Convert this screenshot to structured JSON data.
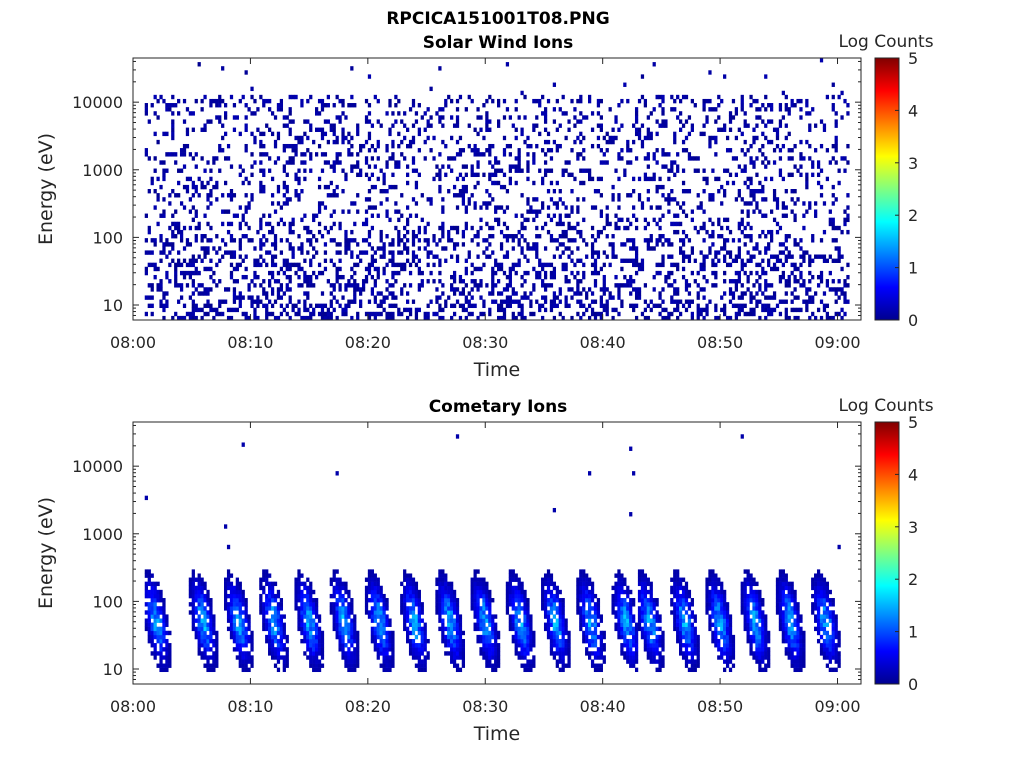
{
  "figure_title": "RPCICA151001T08.PNG",
  "colormap": [
    "#00008f",
    "#0000ff",
    "#0080ff",
    "#00ffff",
    "#80ff80",
    "#ffff00",
    "#ff8000",
    "#ff0000",
    "#800000"
  ],
  "chart_data": [
    {
      "type": "heatmap",
      "title": "Solar Wind Ions",
      "xlabel": "Time",
      "ylabel": "Energy (eV)",
      "yscale": "log",
      "ylim": [
        6,
        45000
      ],
      "xlim": [
        "08:00",
        "09:02"
      ],
      "xticks": [
        "08:00",
        "08:10",
        "08:20",
        "08:30",
        "08:40",
        "08:50",
        "09:00"
      ],
      "yticks": [
        "10",
        "100",
        "1000",
        "10000"
      ],
      "colorbar": {
        "label": "Log Counts",
        "range": [
          0,
          5
        ],
        "ticks": [
          "0",
          "1",
          "2",
          "3",
          "4",
          "5"
        ]
      },
      "description_pattern": "sparse",
      "data_start": "08:01",
      "data_end": "09:01",
      "typical_level": 0.2
    },
    {
      "type": "heatmap",
      "title": "Cometary Ions",
      "xlabel": "Time",
      "ylabel": "Energy (eV)",
      "yscale": "log",
      "ylim": [
        6,
        45000
      ],
      "xlim": [
        "08:00",
        "09:02"
      ],
      "xticks": [
        "08:00",
        "08:10",
        "08:20",
        "08:30",
        "08:40",
        "08:50",
        "09:00"
      ],
      "yticks": [
        "10",
        "100",
        "1000",
        "10000"
      ],
      "colorbar": {
        "label": "Log Counts",
        "range": [
          0,
          5
        ],
        "ticks": [
          "0",
          "1",
          "2",
          "3",
          "4",
          "5"
        ]
      },
      "description_pattern": "bursts",
      "data_start": "08:01",
      "data_end": "09:01",
      "burst_times": [
        "08:02",
        "08:06",
        "08:09",
        "08:12",
        "08:15",
        "08:18",
        "08:21",
        "08:24",
        "08:27",
        "08:30",
        "08:33",
        "08:36",
        "08:39",
        "08:42",
        "08:44",
        "08:47",
        "08:50",
        "08:53",
        "08:56",
        "08:59"
      ],
      "burst_peak_energy_eV": 50,
      "burst_peak_level": 1.8
    }
  ]
}
